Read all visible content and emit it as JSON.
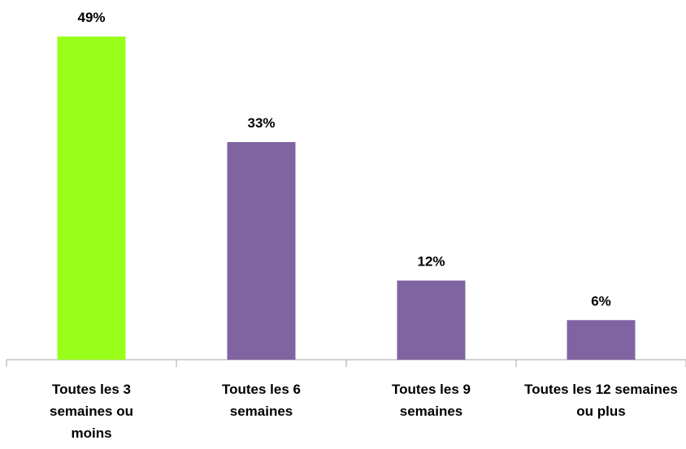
{
  "chart_data": {
    "type": "bar",
    "categories": [
      "Toutes les 3 semaines ou moins",
      "Toutes les 6 semaines",
      "Toutes les 9 semaines",
      "Toutes les 12 semaines ou plus"
    ],
    "values": [
      49,
      33,
      12,
      6
    ],
    "value_labels": [
      "49%",
      "33%",
      "12%",
      "6%"
    ],
    "colors": [
      "#99ff1a",
      "#8064a2",
      "#8064a2",
      "#8064a2"
    ]
  }
}
